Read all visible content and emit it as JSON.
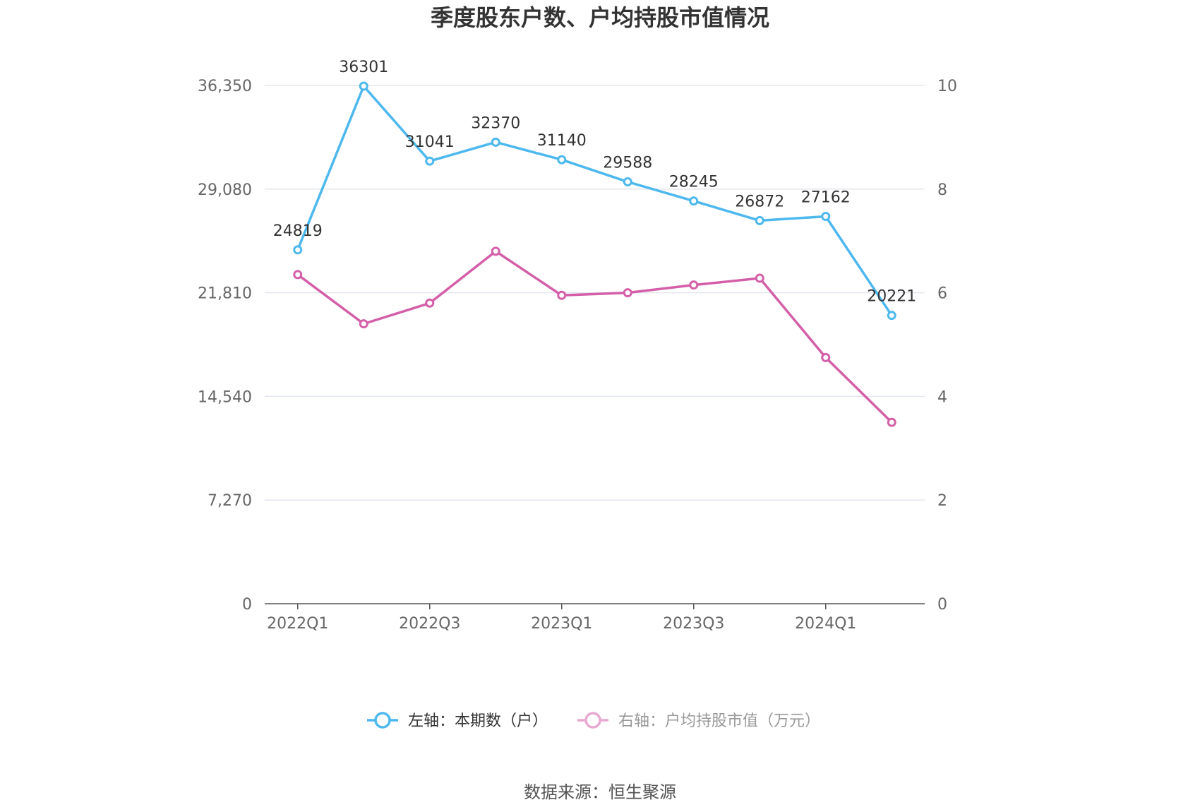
{
  "chart_data": {
    "type": "line",
    "title": "季度股东户数、户均持股市值情况",
    "categories": [
      "2022Q1",
      "2022Q2",
      "2022Q3",
      "2022Q4",
      "2023Q1",
      "2023Q2",
      "2023Q3",
      "2023Q4",
      "2024Q1",
      "2024Q2"
    ],
    "x_tick_labels": [
      "2022Q1",
      "2022Q3",
      "2023Q1",
      "2023Q3",
      "2024Q1"
    ],
    "y_left": {
      "min": 0,
      "max": 36350,
      "ticks": [
        "0",
        "7,270",
        "14,540",
        "21,810",
        "29,080",
        "36,350"
      ]
    },
    "y_right": {
      "min": 0,
      "max": 10,
      "ticks": [
        "0",
        "2",
        "4",
        "6",
        "8",
        "10"
      ]
    },
    "series": [
      {
        "name": "左轴：本期数（户）",
        "axis": "left",
        "color": "#4db8ee",
        "values": [
          24819,
          36301,
          31041,
          32370,
          31140,
          29588,
          28245,
          26872,
          27162,
          20221
        ],
        "labels": [
          "24819",
          "36301",
          "31041",
          "32370",
          "31140",
          "29588",
          "28245",
          "26872",
          "27162",
          "20221"
        ]
      },
      {
        "name": "右轴：户均持股市值（万元）",
        "axis": "right",
        "color": "#d45fa8",
        "values": [
          6.35,
          5.4,
          5.8,
          6.8,
          5.95,
          6.0,
          6.15,
          6.28,
          4.75,
          3.5
        ]
      }
    ],
    "grid": true,
    "legend_position": "bottom"
  },
  "source": "数据来源：恒生聚源"
}
